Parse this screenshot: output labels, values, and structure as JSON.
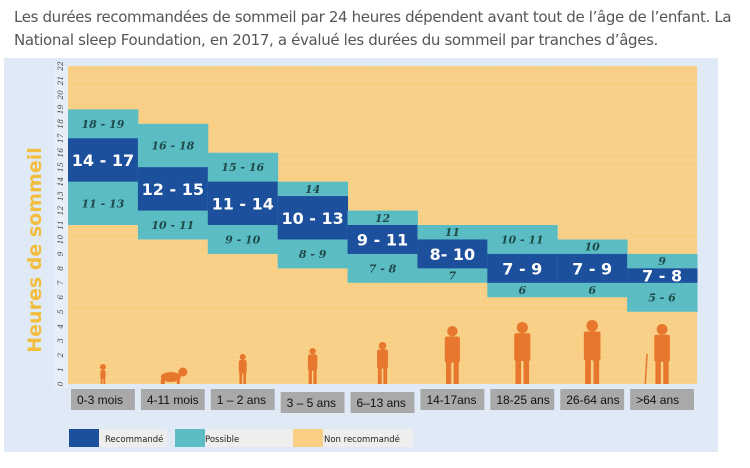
{
  "intro": {
    "line1": "Les durées recommandées de sommeil par 24 heures dépendent avant tout de l’âge de l’enfant. La",
    "line2": "National sleep Foundation, en 2017, a évalué les durées du sommeil par tranches d’âges."
  },
  "colors": {
    "recommended": "#1c4f9c",
    "possible": "#5bbcc4",
    "not_recommended": "#f8cf84",
    "figure": "#e8772e",
    "axis_title": "#f2bd3c",
    "age_box": "#a9a9a9",
    "frame": "#dfeaf6"
  },
  "chart_data": {
    "type": "bar",
    "subtype": "range",
    "title": "",
    "ylabel": "Heures de sommeil",
    "xlabel": "",
    "ylim": [
      0,
      22
    ],
    "yticks": [
      0,
      1,
      2,
      3,
      4,
      5,
      6,
      7,
      8,
      9,
      10,
      11,
      12,
      13,
      14,
      15,
      16,
      17,
      18,
      19,
      20,
      21,
      22
    ],
    "grid": true,
    "categories": [
      "0-3 mois",
      "4-11 mois",
      "1 – 2 ans",
      "3 – 5 ans",
      "6–13 ans",
      "14-17ans",
      "18-25 ans",
      "26-64 ans",
      ">64  ans"
    ],
    "figures": [
      "newborn-figure",
      "crawling-baby-figure",
      "toddler-figure",
      "preschool-child-figure",
      "child-figure",
      "teen-figure",
      "young-adult-figure",
      "adult-figure",
      "elderly-with-cane-figure"
    ],
    "series": [
      {
        "name": "Recommandé",
        "ranges": [
          [
            14,
            17
          ],
          [
            12,
            15
          ],
          [
            11,
            14
          ],
          [
            10,
            13
          ],
          [
            9,
            11
          ],
          [
            8,
            10
          ],
          [
            7,
            9
          ],
          [
            7,
            9
          ],
          [
            7,
            8
          ]
        ],
        "labels": [
          "14 - 17",
          "12 - 15",
          "11 - 14",
          "10 - 13",
          "9 - 11",
          "8- 10",
          "7 - 9",
          "7 - 9",
          "7 - 8"
        ]
      },
      {
        "name": "Possible",
        "ranges": [
          [
            11,
            19
          ],
          [
            10,
            18
          ],
          [
            9,
            16
          ],
          [
            8,
            14
          ],
          [
            7,
            12
          ],
          [
            7,
            11
          ],
          [
            6,
            11
          ],
          [
            6,
            10
          ],
          [
            5,
            9
          ]
        ],
        "upper_labels": [
          "18 - 19",
          "16 - 18",
          "15 - 16",
          "14",
          "12",
          "11",
          "10 - 11",
          "10",
          "9"
        ],
        "lower_labels": [
          "11 - 13",
          "10 - 11",
          "9 - 10",
          "8 - 9",
          "7 - 8",
          "7",
          "6",
          "6",
          "5 - 6"
        ]
      }
    ],
    "legend": {
      "placement": "bottom-left",
      "items": [
        {
          "label": "Recommandé",
          "color": "#1c4f9c"
        },
        {
          "label": "Possible",
          "color": "#5bbcc4"
        },
        {
          "label": "Non recommandé",
          "color": "#f8cf84"
        }
      ]
    }
  }
}
